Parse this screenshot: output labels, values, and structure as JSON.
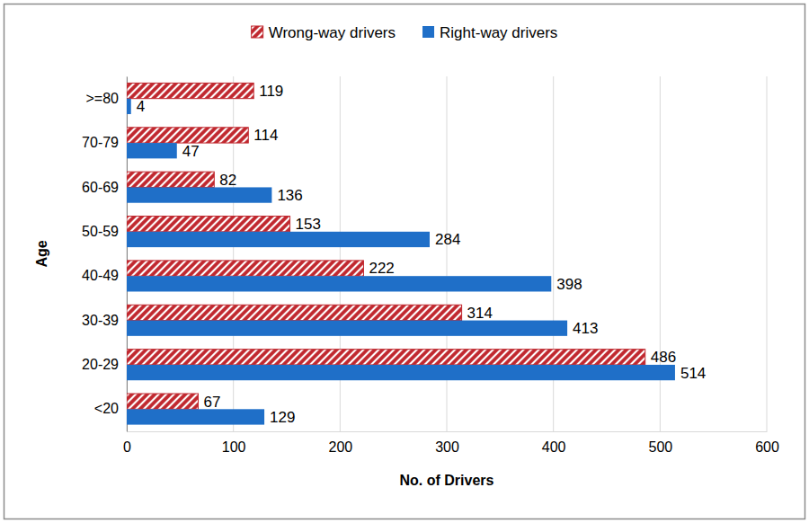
{
  "chart_data": {
    "type": "bar",
    "orientation": "horizontal",
    "x_label": "No. of Drivers",
    "y_label": "Age",
    "categories": [
      "<20",
      "20-29",
      "30-39",
      "40-49",
      "50-59",
      "60-69",
      "70-79",
      ">=80"
    ],
    "series": [
      {
        "name": "Wrong-way drivers",
        "color": "#c0262d",
        "marker": "hatched",
        "values": [
          67,
          486,
          314,
          222,
          153,
          82,
          114,
          119
        ]
      },
      {
        "name": "Right-way drivers",
        "color": "#1f6fc8",
        "marker": "solid",
        "values": [
          129,
          514,
          413,
          398,
          284,
          136,
          47,
          4
        ]
      }
    ],
    "xlim": [
      0,
      600
    ],
    "xticks": [
      0,
      100,
      200,
      300,
      400,
      500,
      600
    ],
    "grid": true,
    "legend": "top",
    "data_labels": true
  }
}
